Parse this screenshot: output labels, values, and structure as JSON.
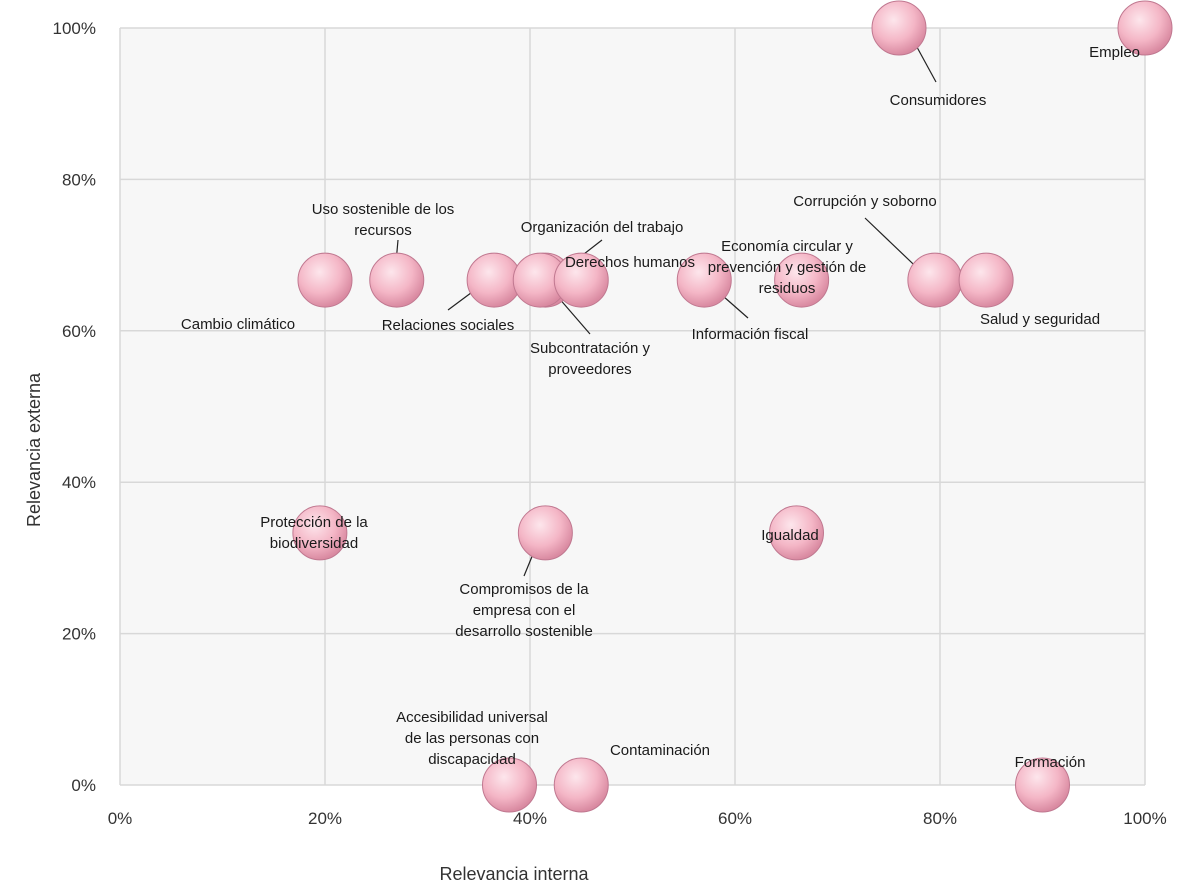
{
  "chart_data": {
    "type": "scatter",
    "xlabel": "Relevancia interna",
    "ylabel": "Relevancia externa",
    "xlim": [
      0,
      100
    ],
    "ylim": [
      0,
      100
    ],
    "unit": "%",
    "x_ticks": [
      "0%",
      "20%",
      "40%",
      "60%",
      "80%",
      "100%"
    ],
    "y_ticks": [
      "0%",
      "20%",
      "40%",
      "60%",
      "80%",
      "100%"
    ],
    "grid": true,
    "marker_color": "#f4b6c6",
    "points": [
      {
        "label": [
          "Empleo"
        ],
        "x": 100,
        "y": 100
      },
      {
        "label": [
          "Consumidores"
        ],
        "x": 76,
        "y": 100
      },
      {
        "label": [
          "Cambio climático"
        ],
        "x": 20,
        "y": 66.7
      },
      {
        "label": [
          "Uso sostenible de los",
          "recursos"
        ],
        "x": 27,
        "y": 66.7
      },
      {
        "label": [
          "Relaciones sociales"
        ],
        "x": 36.5,
        "y": 66.7
      },
      {
        "label": [
          "Organización del trabajo"
        ],
        "x": 41.5,
        "y": 66.7
      },
      {
        "label": [
          "Subcontratación y",
          "proveedores"
        ],
        "x": 41,
        "y": 66.7
      },
      {
        "label": [
          "Derechos humanos"
        ],
        "x": 45,
        "y": 66.7
      },
      {
        "label": [
          "Información fiscal"
        ],
        "x": 57,
        "y": 66.7
      },
      {
        "label": [
          "Economía circular y",
          "prevención y gestión de",
          "residuos"
        ],
        "x": 66.5,
        "y": 66.7
      },
      {
        "label": [
          "Corrupción y soborno"
        ],
        "x": 79.5,
        "y": 66.7
      },
      {
        "label": [
          "Salud y seguridad"
        ],
        "x": 84.5,
        "y": 66.7
      },
      {
        "label": [
          "Protección de la",
          "biodiversidad"
        ],
        "x": 19.5,
        "y": 33.3
      },
      {
        "label": [
          "Compromisos de la",
          "empresa con el",
          "desarrollo sostenible"
        ],
        "x": 41.5,
        "y": 33.3
      },
      {
        "label": [
          "Igualdad"
        ],
        "x": 66,
        "y": 33.3
      },
      {
        "label": [
          "Accesibilidad universal",
          "de las personas con",
          "discapacidad"
        ],
        "x": 38,
        "y": 0
      },
      {
        "label": [
          "Contaminación"
        ],
        "x": 45,
        "y": 0
      },
      {
        "label": [
          "Formación"
        ],
        "x": 90,
        "y": 0
      }
    ]
  }
}
